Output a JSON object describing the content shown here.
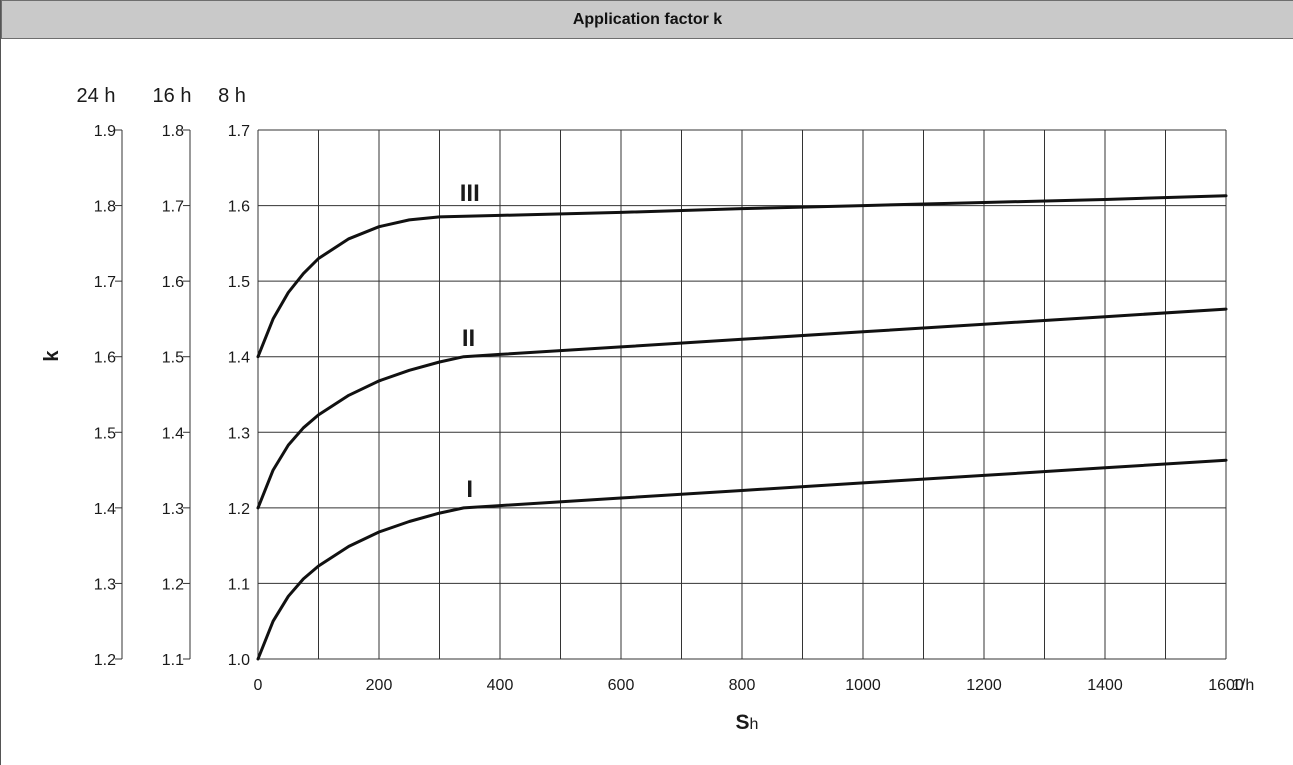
{
  "title": "Application factor k",
  "chart_data": {
    "type": "line",
    "title": "Application factor k",
    "xlabel_main": "S",
    "xlabel_sub": "h",
    "xunit": "1/h",
    "ylabel": "k",
    "xlim": [
      0,
      1600
    ],
    "x_ticks": [
      0,
      200,
      400,
      600,
      800,
      1000,
      1200,
      1400,
      1600
    ],
    "x_grid_step": 100,
    "grid": true,
    "y_axes": [
      {
        "header": "24 h",
        "ticks": [
          "1.9",
          "1.8",
          "1.7",
          "1.6",
          "1.5",
          "1.4",
          "1.3",
          "1.2"
        ]
      },
      {
        "header": "16 h",
        "ticks": [
          "1.8",
          "1.7",
          "1.6",
          "1.5",
          "1.4",
          "1.3",
          "1.2",
          "1.1"
        ]
      },
      {
        "header": "8 h",
        "ticks": [
          "1.7",
          "1.6",
          "1.5",
          "1.4",
          "1.3",
          "1.2",
          "1.1",
          "1.0"
        ]
      }
    ],
    "ylim": [
      1.0,
      1.7
    ],
    "series": [
      {
        "name": "I",
        "x": [
          0,
          25,
          50,
          75,
          100,
          150,
          200,
          250,
          300,
          340,
          400,
          600,
          800,
          1000,
          1200,
          1400,
          1600
        ],
        "y": [
          1.0,
          1.05,
          1.083,
          1.106,
          1.123,
          1.149,
          1.168,
          1.182,
          1.193,
          1.2,
          1.203,
          1.213,
          1.223,
          1.233,
          1.243,
          1.253,
          1.263
        ]
      },
      {
        "name": "II",
        "x": [
          0,
          25,
          50,
          75,
          100,
          150,
          200,
          250,
          300,
          340,
          400,
          600,
          800,
          1000,
          1200,
          1400,
          1600
        ],
        "y": [
          1.2,
          1.25,
          1.283,
          1.306,
          1.323,
          1.349,
          1.368,
          1.382,
          1.393,
          1.4,
          1.403,
          1.413,
          1.423,
          1.433,
          1.443,
          1.453,
          1.463
        ]
      },
      {
        "name": "III",
        "x": [
          0,
          25,
          50,
          75,
          100,
          150,
          200,
          250,
          300,
          400,
          600,
          800,
          1000,
          1200,
          1400,
          1600
        ],
        "y": [
          1.4,
          1.45,
          1.485,
          1.51,
          1.53,
          1.556,
          1.572,
          1.581,
          1.585,
          1.587,
          1.591,
          1.596,
          1.6,
          1.604,
          1.608,
          1.613
        ]
      }
    ]
  }
}
